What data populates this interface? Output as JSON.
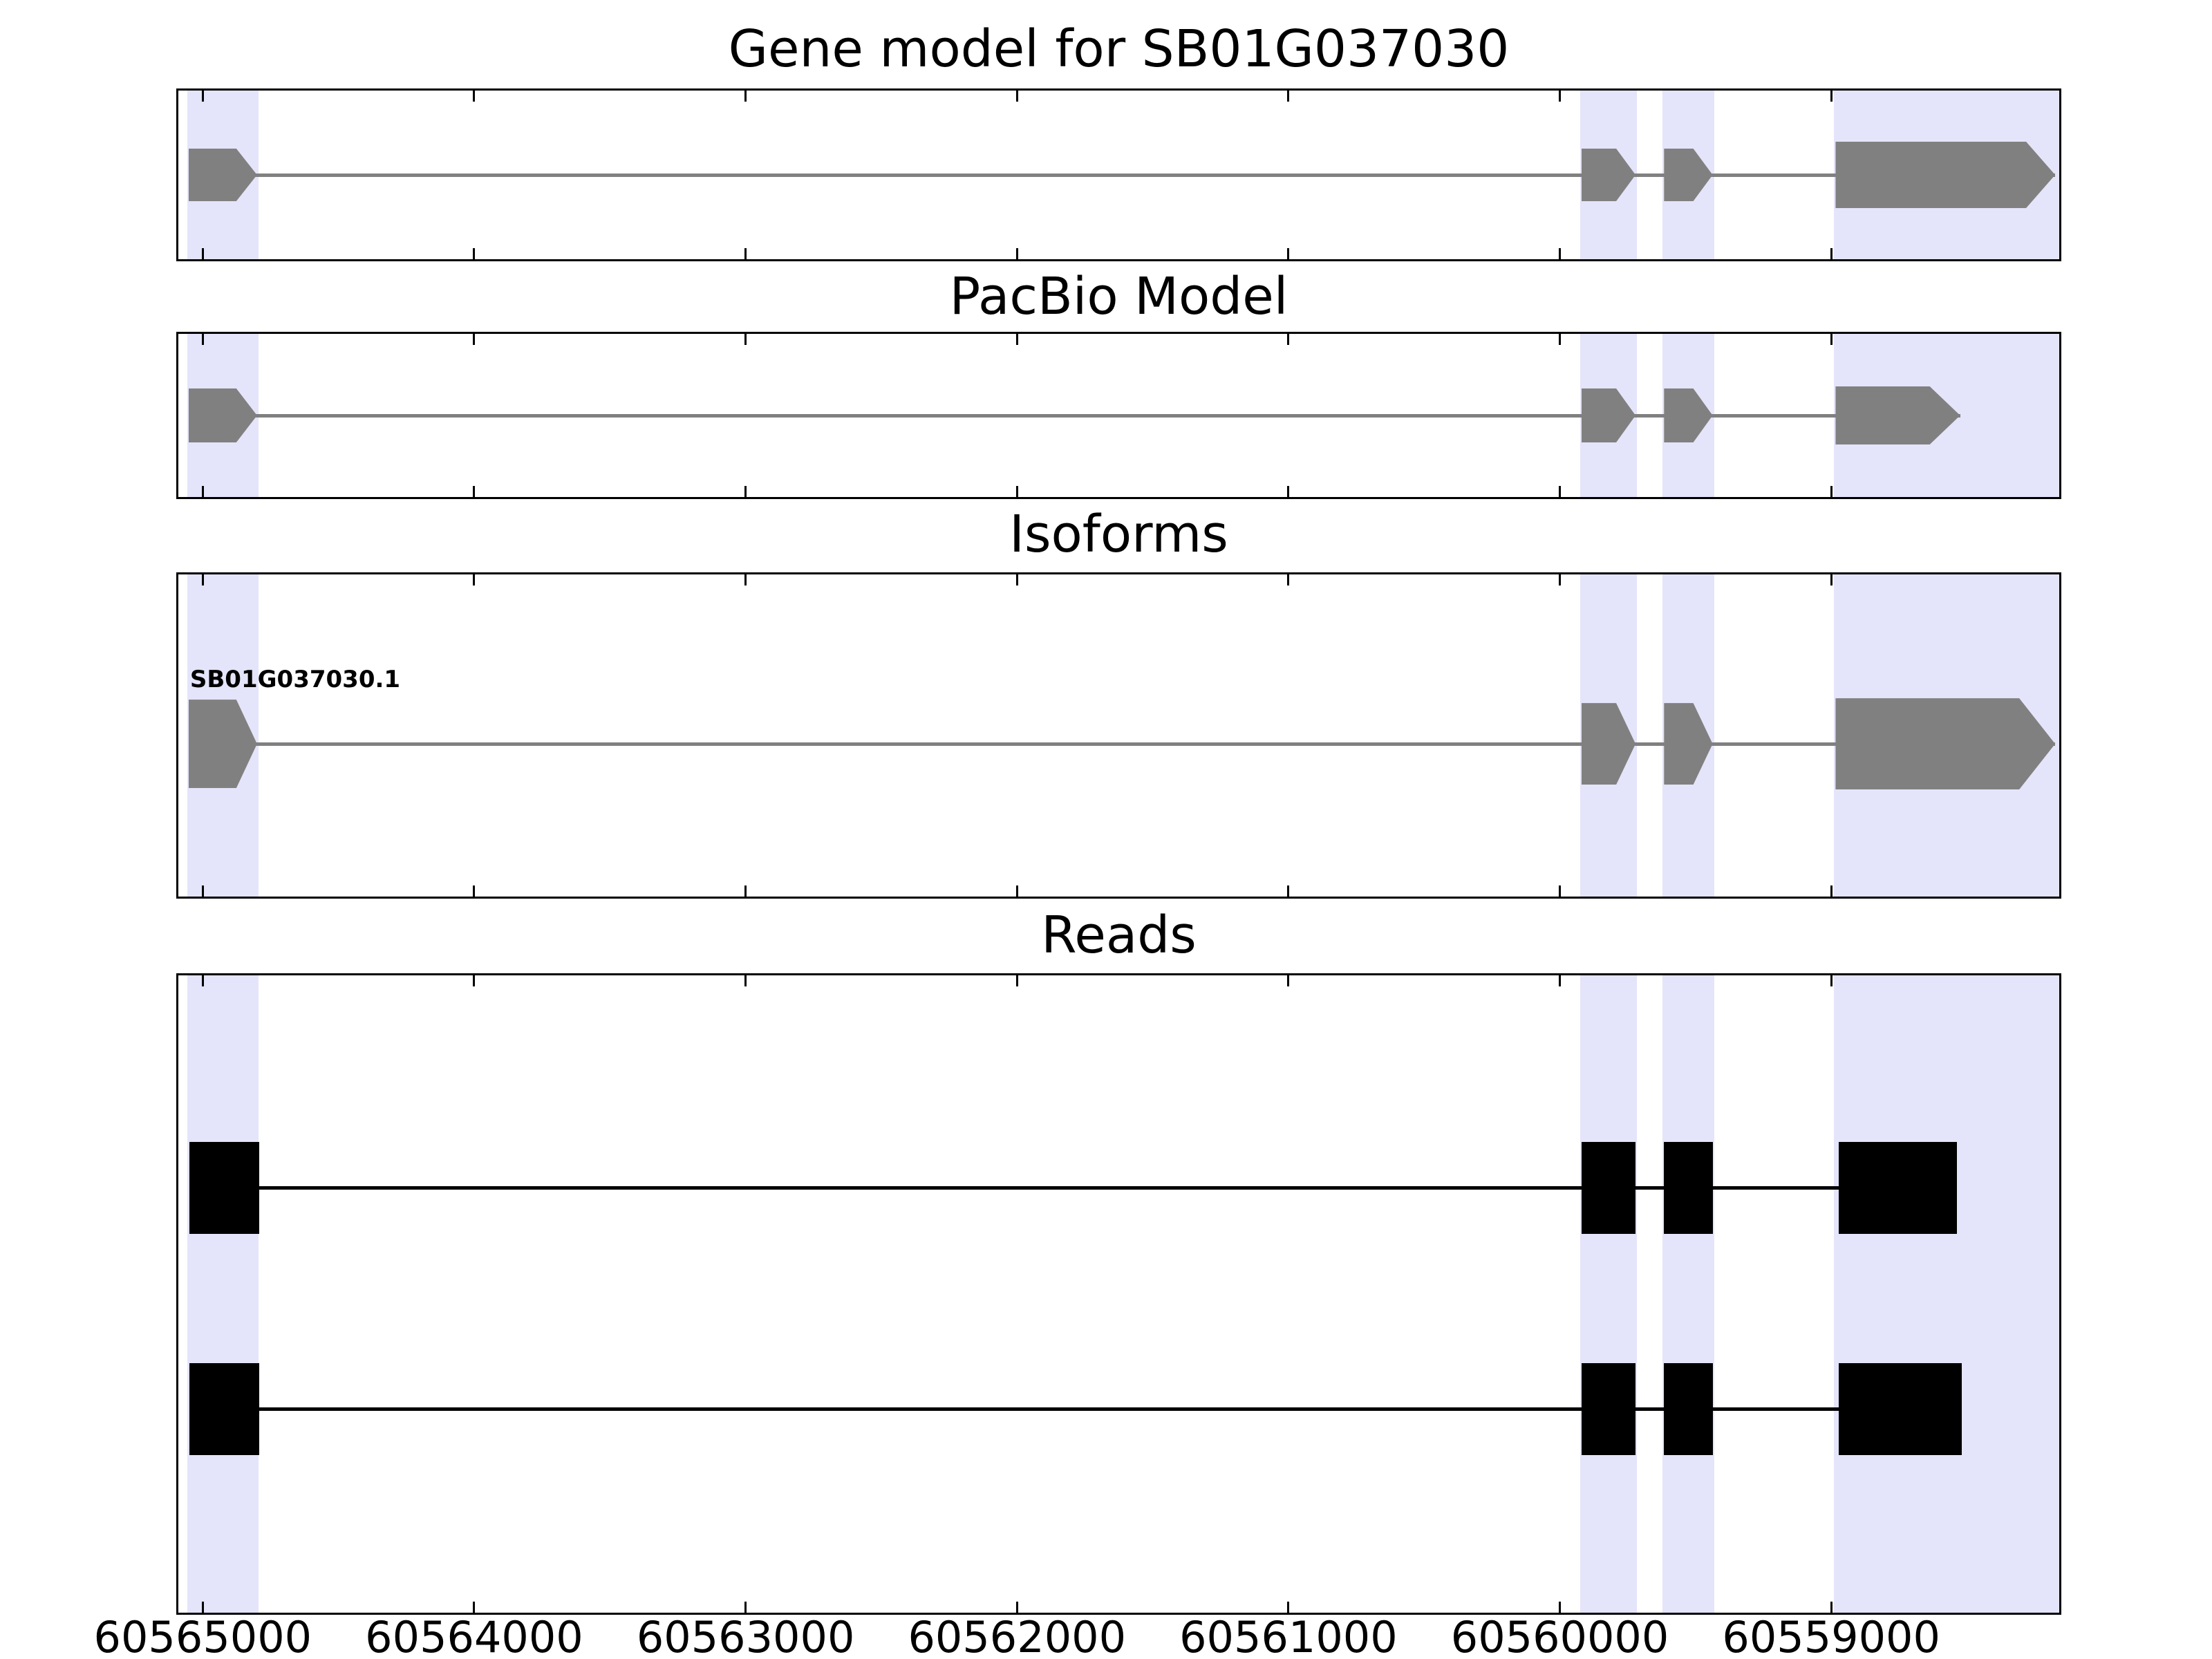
{
  "chart_data": {
    "type": "genome-browser-gene-model",
    "x_axis": {
      "orientation": "reversed",
      "domain_bp": [
        60565090,
        60558160
      ],
      "ticks_bp": [
        60565000,
        60564000,
        60563000,
        60562000,
        60561000,
        60560000,
        60559000
      ],
      "tick_labels": [
        "60565000",
        "60564000",
        "60563000",
        "60562000",
        "60561000",
        "60560000",
        "60559000"
      ]
    },
    "highlight_regions_bp": [
      {
        "start": 60565056,
        "end": 60564794
      },
      {
        "start": 60559926,
        "end": 60559716
      },
      {
        "start": 60559621,
        "end": 60559431
      },
      {
        "start": 60558990,
        "end": 60558160
      }
    ],
    "panels": [
      {
        "title": "Gene model for SB01G037030",
        "rows": [
          {
            "kind": "transcript",
            "color": "#808080",
            "line_width": 5,
            "center_frac": 0.5,
            "exons": [
              {
                "start": 60565052,
                "end": 60564800,
                "h": 76,
                "tip": 30
              },
              {
                "start": 60559921,
                "end": 60559721,
                "h": 76,
                "tip": 28
              },
              {
                "start": 60559616,
                "end": 60559437,
                "h": 76,
                "tip": 28
              },
              {
                "start": 60558984,
                "end": 60558175,
                "h": 96,
                "tip": 42
              }
            ]
          }
        ]
      },
      {
        "title": "PacBio Model",
        "rows": [
          {
            "kind": "transcript",
            "color": "#808080",
            "line_width": 5,
            "center_frac": 0.5,
            "exons": [
              {
                "start": 60565052,
                "end": 60564800,
                "h": 78,
                "tip": 30
              },
              {
                "start": 60559921,
                "end": 60559721,
                "h": 78,
                "tip": 28
              },
              {
                "start": 60559616,
                "end": 60559437,
                "h": 78,
                "tip": 28
              },
              {
                "start": 60558984,
                "end": 60558525,
                "h": 84,
                "tip": 44
              }
            ]
          }
        ]
      },
      {
        "title": "Isoforms",
        "rows": [
          {
            "kind": "transcript",
            "label": "SB01G037030.1",
            "color": "#808080",
            "line_width": 5,
            "center_frac": 0.526,
            "exons": [
              {
                "start": 60565052,
                "end": 60564800,
                "h": 128,
                "tip": 30
              },
              {
                "start": 60559921,
                "end": 60559721,
                "h": 118,
                "tip": 28
              },
              {
                "start": 60559616,
                "end": 60559437,
                "h": 118,
                "tip": 28
              },
              {
                "start": 60558984,
                "end": 60558175,
                "h": 132,
                "tip": 52
              }
            ]
          }
        ]
      },
      {
        "title": "Reads",
        "rows": [
          {
            "kind": "read",
            "color": "#000000",
            "line_width": 5,
            "center_frac": 0.334,
            "exons": [
              {
                "start": 60565048,
                "end": 60564792,
                "h": 133
              },
              {
                "start": 60559921,
                "end": 60559721,
                "h": 133
              },
              {
                "start": 60559616,
                "end": 60559437,
                "h": 133
              },
              {
                "start": 60558973,
                "end": 60558536,
                "h": 133
              }
            ]
          },
          {
            "kind": "read",
            "color": "#000000",
            "line_width": 5,
            "center_frac": 0.681,
            "exons": [
              {
                "start": 60565048,
                "end": 60564792,
                "h": 133
              },
              {
                "start": 60559921,
                "end": 60559721,
                "h": 133
              },
              {
                "start": 60559616,
                "end": 60559437,
                "h": 133
              },
              {
                "start": 60558973,
                "end": 60558520,
                "h": 133
              }
            ]
          }
        ]
      }
    ]
  },
  "style": {
    "background": "#ffffff",
    "panel_border": "#000000",
    "band_color": "#e4e4fa",
    "exon_color": "#808080",
    "read_color": "#000000",
    "tick_color": "#000000",
    "tick_length": 16,
    "text_color": "#000000"
  }
}
